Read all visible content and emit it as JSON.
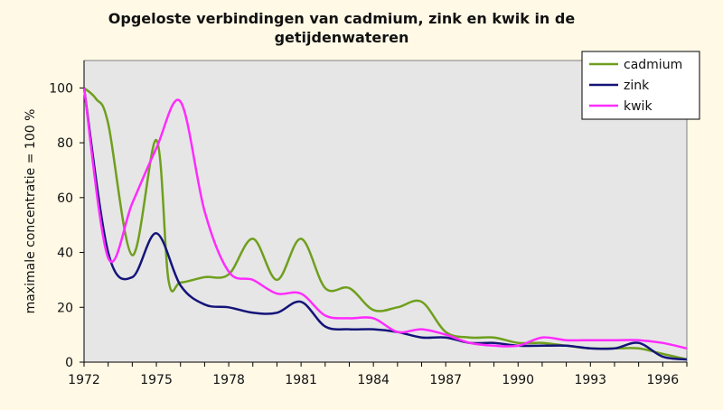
{
  "chart_data": {
    "type": "line",
    "title_lines": [
      "Opgeloste verbindingen van cadmium, zink en kwik in de",
      "getijdenwateren"
    ],
    "xlabel": "",
    "ylabel": "maximale concentratie = 100 %",
    "xlim": [
      1972,
      1997
    ],
    "ylim": [
      0,
      110
    ],
    "xticks": [
      1972,
      1975,
      1978,
      1981,
      1984,
      1987,
      1990,
      1993,
      1996
    ],
    "yticks": [
      0,
      20,
      40,
      60,
      80,
      100
    ],
    "grid": false,
    "legend": "top-right",
    "background": "#e6e6e6",
    "series": [
      {
        "name": "cadmium",
        "color": "#6f9f1e",
        "x": [
          1972,
          1972.5,
          1973,
          1974,
          1975,
          1975.5,
          1976,
          1977,
          1978,
          1979,
          1980,
          1981,
          1982,
          1983,
          1984,
          1985,
          1986,
          1987,
          1988,
          1989,
          1990,
          1991,
          1992,
          1993,
          1994,
          1995,
          1996,
          1997
        ],
        "values": [
          100,
          96,
          87,
          39,
          81,
          30,
          29,
          31,
          32,
          45,
          30,
          45,
          27,
          27,
          19,
          20,
          22,
          11,
          9,
          9,
          7,
          7,
          6,
          5,
          5,
          5,
          3,
          1
        ]
      },
      {
        "name": "zink",
        "color": "#14147a",
        "x": [
          1972,
          1973,
          1974,
          1975,
          1976,
          1977,
          1978,
          1979,
          1980,
          1981,
          1982,
          1983,
          1984,
          1985,
          1986,
          1987,
          1988,
          1989,
          1990,
          1991,
          1992,
          1993,
          1994,
          1995,
          1996,
          1997
        ],
        "values": [
          100,
          40,
          31,
          47,
          28,
          21,
          20,
          18,
          18,
          22,
          13,
          12,
          12,
          11,
          9,
          9,
          7,
          7,
          6,
          6,
          6,
          5,
          5,
          7,
          2,
          1
        ]
      },
      {
        "name": "kwik",
        "color": "#ff2bff",
        "x": [
          1972,
          1973,
          1974,
          1975,
          1976,
          1977,
          1978,
          1979,
          1980,
          1981,
          1982,
          1983,
          1984,
          1985,
          1986,
          1987,
          1988,
          1989,
          1990,
          1991,
          1992,
          1993,
          1994,
          1995,
          1996,
          1997
        ],
        "values": [
          100,
          38,
          58,
          78,
          95,
          55,
          33,
          30,
          25,
          25,
          17,
          16,
          16,
          11,
          12,
          10,
          7,
          6,
          6,
          9,
          8,
          8,
          8,
          8,
          7,
          5
        ]
      }
    ]
  }
}
